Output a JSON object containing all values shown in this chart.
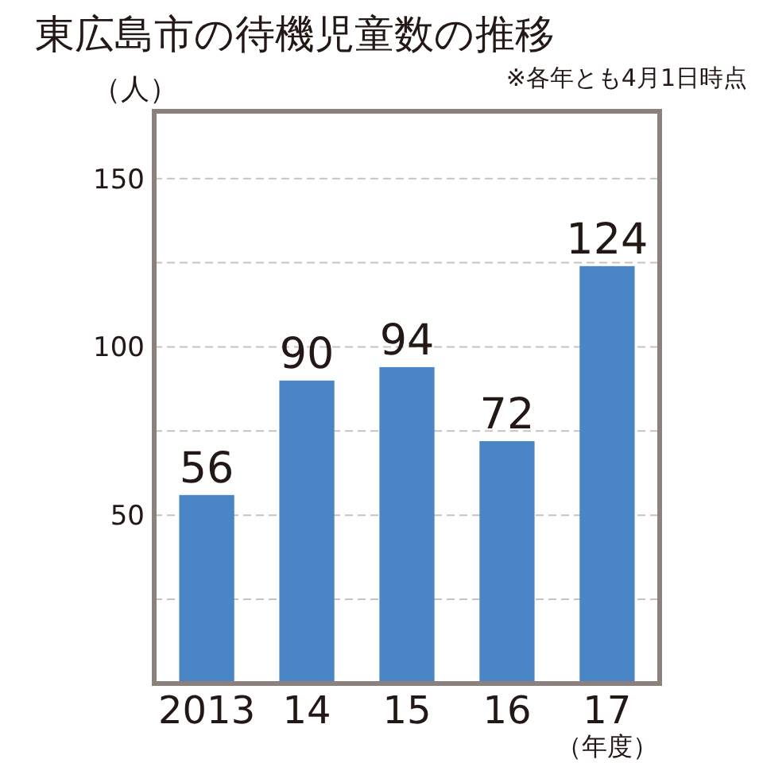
{
  "chart_data": {
    "type": "bar",
    "title": "東広島市の待機児童数の推移",
    "subtitle": "※各年とも4月1日時点",
    "ylabel": "（人）",
    "xlabel": "（年度）",
    "categories": [
      "2013",
      "14",
      "15",
      "16",
      "17"
    ],
    "values": [
      56,
      90,
      94,
      72,
      124
    ],
    "color": "#4a86c5",
    "data_labels": true,
    "ylim": [
      0,
      170
    ],
    "yticks": [
      {
        "value": 25,
        "label": null
      },
      50,
      {
        "value": 75,
        "label": null
      },
      100,
      {
        "value": 125,
        "label": null
      },
      150
    ],
    "grid": "y"
  }
}
